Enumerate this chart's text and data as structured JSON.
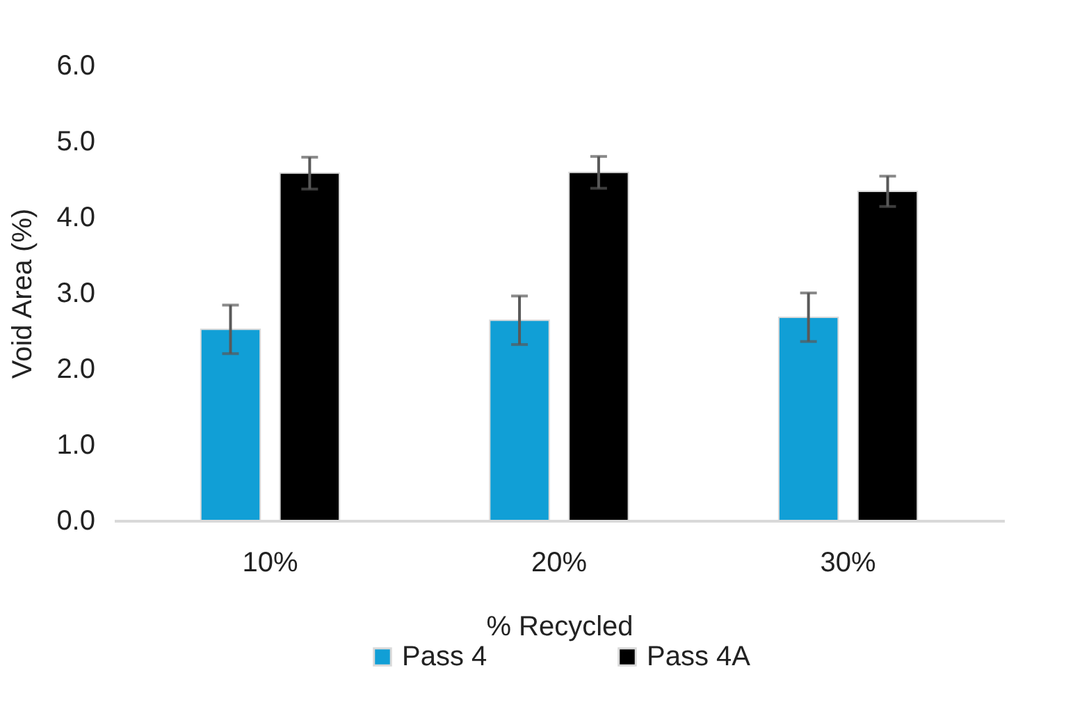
{
  "chart_data": {
    "type": "bar",
    "xlabel": "% Recycled",
    "ylabel": "Void Area (%)",
    "categories": [
      "10%",
      "20%",
      "30%"
    ],
    "series": [
      {
        "name": "Pass 4",
        "color": "#119fd6",
        "values": [
          2.52,
          2.64,
          2.68
        ],
        "errors": [
          0.32,
          0.32,
          0.32
        ]
      },
      {
        "name": "Pass 4A",
        "color": "#000000",
        "values": [
          4.58,
          4.59,
          4.34
        ],
        "errors": [
          0.21,
          0.21,
          0.2
        ]
      }
    ],
    "ylim": [
      0,
      6
    ],
    "yticks": [
      {
        "value": 0,
        "label": "0.0"
      },
      {
        "value": 1,
        "label": "1.0"
      },
      {
        "value": 2,
        "label": "2.0"
      },
      {
        "value": 3,
        "label": "3.0"
      },
      {
        "value": 4,
        "label": "4.0"
      },
      {
        "value": 5,
        "label": "5.0"
      },
      {
        "value": 6,
        "label": "6.0"
      }
    ],
    "grid": false,
    "legend": "bottom"
  }
}
